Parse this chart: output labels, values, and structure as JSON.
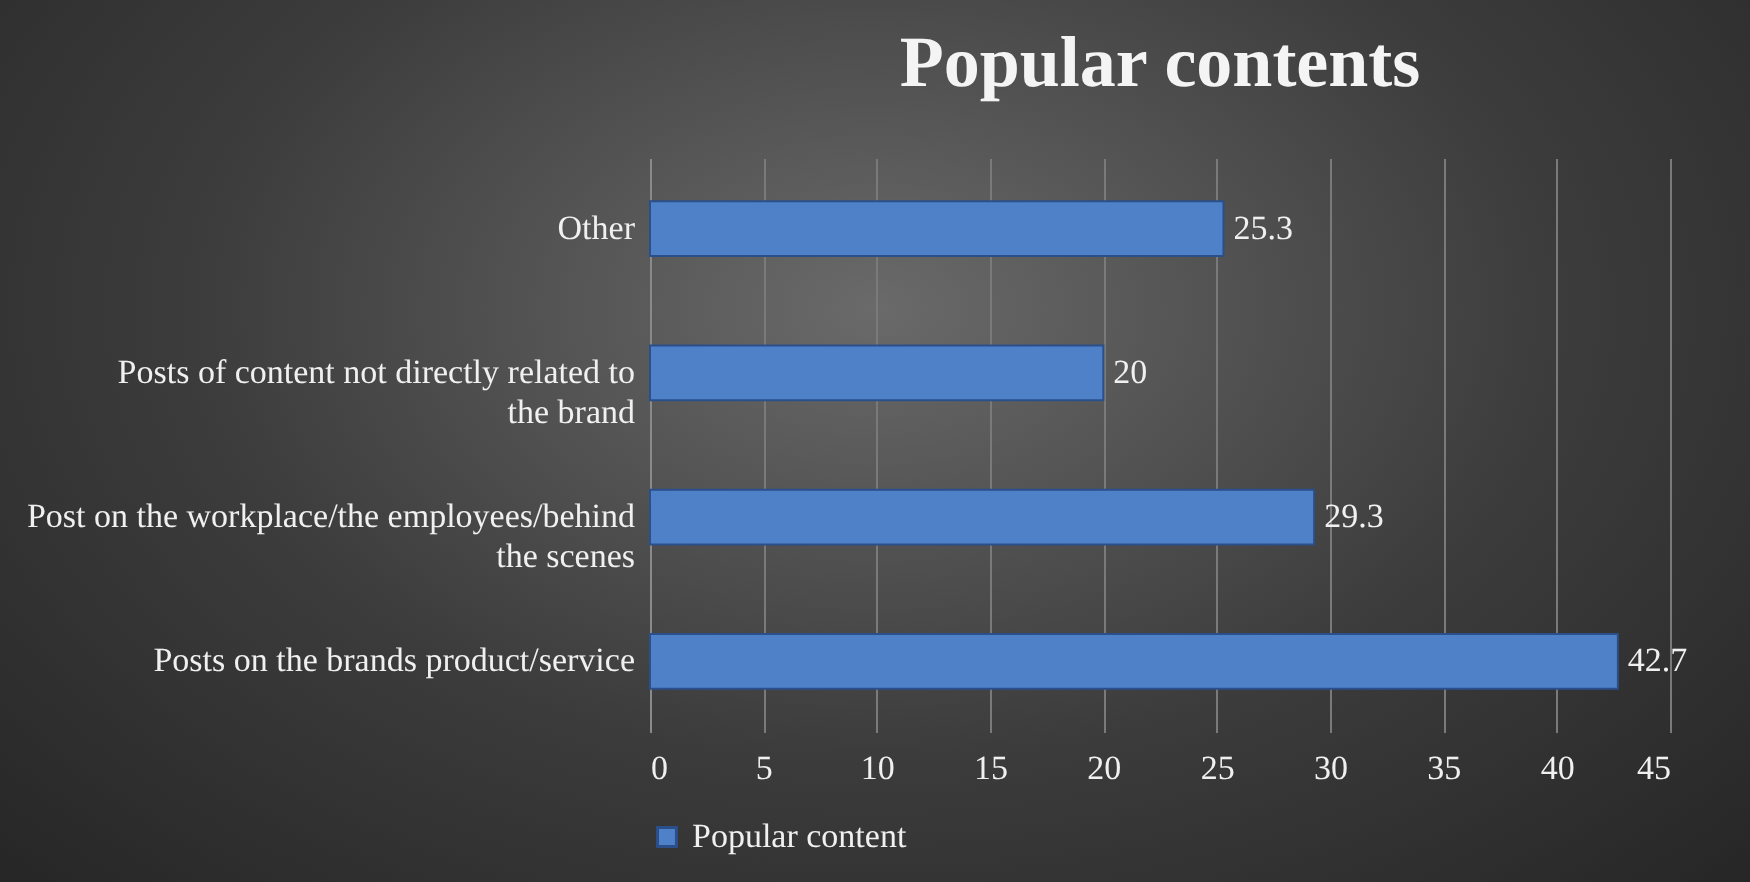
{
  "chart_data": {
    "type": "bar",
    "orientation": "horizontal",
    "title": "Popular contents",
    "categories": [
      "Other",
      "Posts of content not directly related to the brand",
      "Post on the workplace/the employees/behind the scenes",
      "Posts on the brands product/service"
    ],
    "series": [
      {
        "name": "Popular content",
        "color": "#4f81c9",
        "values": [
          25.3,
          20,
          29.3,
          42.7
        ]
      }
    ],
    "xlim": [
      0,
      45
    ],
    "xticks": [
      0,
      5,
      10,
      15,
      20,
      25,
      30,
      35,
      40,
      45
    ],
    "grid": "x",
    "legend": "bottom",
    "data_labels": true
  }
}
